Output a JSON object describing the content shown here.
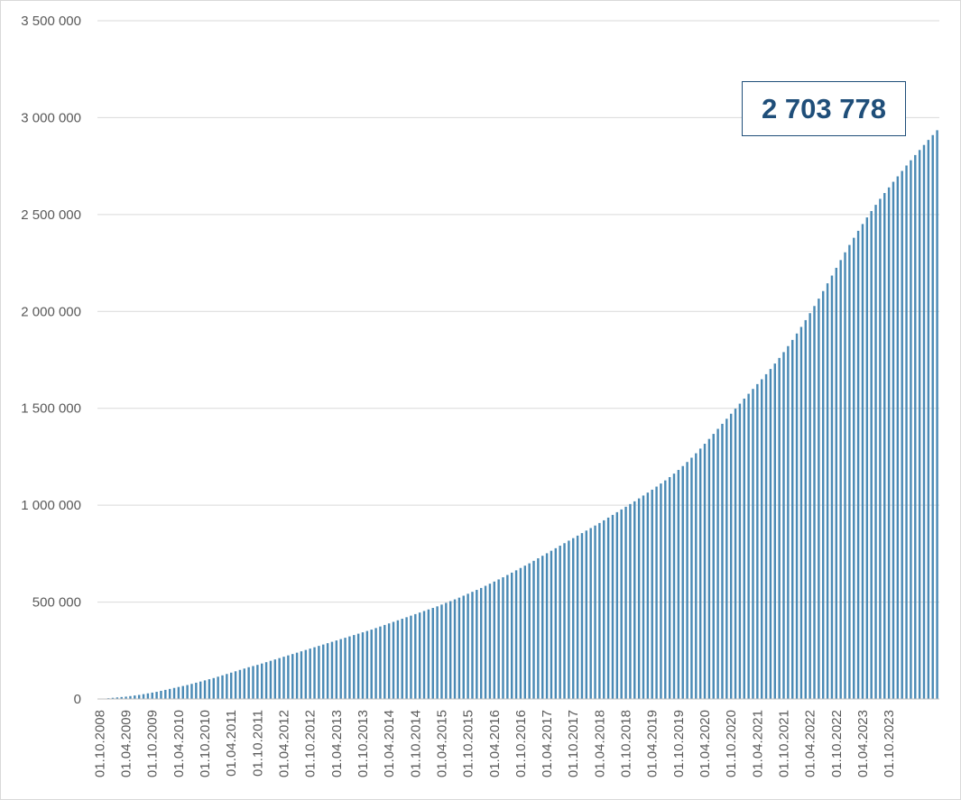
{
  "chart_data": {
    "type": "bar",
    "title": "",
    "xlabel": "",
    "ylabel": "",
    "ylim": [
      0,
      3500000
    ],
    "yticks": [
      0,
      500000,
      1000000,
      1500000,
      2000000,
      2500000,
      3000000,
      3500000
    ],
    "ytick_labels": [
      "0",
      "500 000",
      "1 000 000",
      "1 500 000",
      "2 000 000",
      "2 500 000",
      "3 000 000",
      "3 500 000"
    ],
    "x_start": "2008-10",
    "x_end": "2023-12",
    "xtick_labels": [
      "01.10.2008",
      "01.04.2009",
      "01.10.2009",
      "01.04.2010",
      "01.10.2010",
      "01.04.2011",
      "01.10.2011",
      "01.04.2012",
      "01.10.2012",
      "01.04.2013",
      "01.10.2013",
      "01.04.2014",
      "01.10.2014",
      "01.04.2015",
      "01.10.2015",
      "01.04.2016",
      "01.10.2016",
      "01.04.2017",
      "01.10.2017",
      "01.04.2018",
      "01.10.2018",
      "01.04.2019",
      "01.10.2019",
      "01.04.2020",
      "01.10.2020",
      "01.04.2021",
      "01.10.2021",
      "01.04.2022",
      "01.10.2022",
      "01.04.2023",
      "01.10.2023"
    ],
    "bar_color": "#4a8ab5",
    "grid": true,
    "legend": "none",
    "callout_text": "2 703 778",
    "series": [
      {
        "values": [
          0,
          2000,
          4000,
          6000,
          8000,
          10000,
          12000,
          15000,
          18000,
          21000,
          25000,
          29000,
          33000,
          37000,
          42000,
          47000,
          52000,
          57000,
          62000,
          67000,
          72000,
          78000,
          84000,
          90000,
          96000,
          102000,
          108000,
          115000,
          122000,
          129000,
          136000,
          143000,
          150000,
          157000,
          164000,
          170000,
          176000,
          183000,
          190000,
          197000,
          204000,
          211000,
          218000,
          225000,
          232000,
          239000,
          246000,
          253000,
          260000,
          267000,
          274000,
          281000,
          288000,
          295000,
          302000,
          309000,
          316000,
          323000,
          330000,
          337000,
          344000,
          351000,
          358000,
          366000,
          374000,
          382000,
          390000,
          398000,
          406000,
          414000,
          422000,
          430000,
          438000,
          446000,
          454000,
          462000,
          470000,
          478000,
          487000,
          496000,
          505000,
          514000,
          523000,
          533000,
          543000,
          553000,
          563000,
          573000,
          584000,
          595000,
          606000,
          617000,
          628000,
          640000,
          652000,
          664000,
          676000,
          688000,
          700000,
          713000,
          726000,
          739000,
          752000,
          765000,
          778000,
          791000,
          804000,
          817000,
          830000,
          843000,
          856000,
          869000,
          882000,
          895000,
          908000,
          922000,
          936000,
          950000,
          964000,
          978000,
          992000,
          1006000,
          1020000,
          1035000,
          1050000,
          1065000,
          1080000,
          1096000,
          1112000,
          1128000,
          1145000,
          1163000,
          1182000,
          1202000,
          1223000,
          1245000,
          1268000,
          1292000,
          1317000,
          1342000,
          1368000,
          1394000,
          1420000,
          1446000,
          1472000,
          1498000,
          1524000,
          1550000,
          1575000,
          1600000,
          1625000,
          1650000,
          1676000,
          1703000,
          1731000,
          1760000,
          1790000,
          1821000,
          1853000,
          1886000,
          1920000,
          1955000,
          1991000,
          2028000,
          2066000,
          2105000,
          2145000,
          2185000,
          2225000,
          2265000,
          2305000,
          2343000,
          2380000,
          2416000,
          2451000,
          2485000,
          2518000,
          2550000,
          2581000,
          2611000,
          2640000,
          2669000,
          2697000,
          2725000,
          2753000,
          2780000,
          2807000,
          2833000,
          2859000,
          2885000,
          2910000,
          2935000
        ]
      }
    ]
  }
}
